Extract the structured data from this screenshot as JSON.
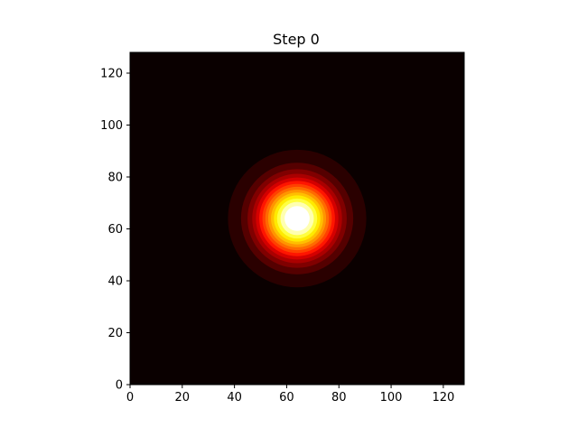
{
  "chart_data": {
    "type": "heatmap",
    "title": "Step 0",
    "xlabel": "",
    "ylabel": "",
    "xlim": [
      0,
      128
    ],
    "ylim": [
      0,
      128
    ],
    "x_ticks": [
      0,
      20,
      40,
      60,
      80,
      100,
      120
    ],
    "y_ticks": [
      0,
      20,
      40,
      60,
      80,
      100,
      120
    ],
    "colormap": "hot",
    "grid": false,
    "legend": "none",
    "colors": {
      "background": "#0a0000",
      "levels": [
        "#0a0000",
        "#2a0000",
        "#550000",
        "#800000",
        "#aa0000",
        "#d40000",
        "#ff1500",
        "#ff4000",
        "#ff6a00",
        "#ff9500",
        "#ffbf00",
        "#ffea00",
        "#ffff40",
        "#ffffb0",
        "#ffffff"
      ]
    },
    "field": {
      "kind": "gaussian-blob",
      "center_x": 64,
      "center_y": 64,
      "contour_level_radii": [
        26.5,
        21.5,
        19,
        17.2,
        15.8,
        14.5,
        13.3,
        12.2,
        11.1,
        10.0,
        8.9,
        7.7,
        6.4,
        4.8,
        2.8
      ]
    }
  }
}
